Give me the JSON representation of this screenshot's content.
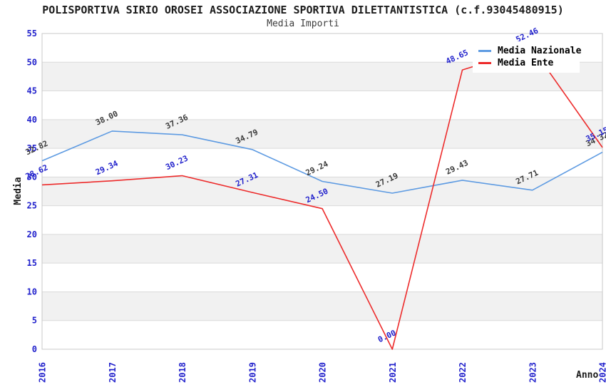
{
  "chart_data": {
    "type": "line",
    "title": "POLISPORTIVA SIRIO OROSEI ASSOCIAZIONE SPORTIVA DILETTANTISTICA (c.f.93045480915)",
    "subtitle": "Media Importi",
    "xlabel": "Anno",
    "ylabel": "Media",
    "categories": [
      "2016",
      "2017",
      "2018",
      "2019",
      "2020",
      "2021",
      "2022",
      "2023",
      "2024"
    ],
    "series": [
      {
        "name": "Media Nazionale",
        "color": "#5E9BE2",
        "label_color": "#3C3C3C",
        "values": [
          32.82,
          38.0,
          37.36,
          34.79,
          29.24,
          27.19,
          29.43,
          27.71,
          34.32
        ]
      },
      {
        "name": "Media Ente",
        "color": "#ED2B2B",
        "label_color": "#2222CC",
        "values": [
          28.62,
          29.34,
          30.23,
          27.31,
          24.5,
          0.0,
          48.65,
          52.46,
          35.15
        ]
      }
    ],
    "ylim": [
      0,
      55
    ],
    "ytick_step": 5,
    "grid": "horizontal-bands",
    "legend_position": "top-right",
    "colors": {
      "tick_label": "#2222CC",
      "band": "#F1F1F1",
      "gridline": "#DADADA",
      "plot_border": "#C8C8C8",
      "axis_title": "#1A1A1A"
    }
  }
}
